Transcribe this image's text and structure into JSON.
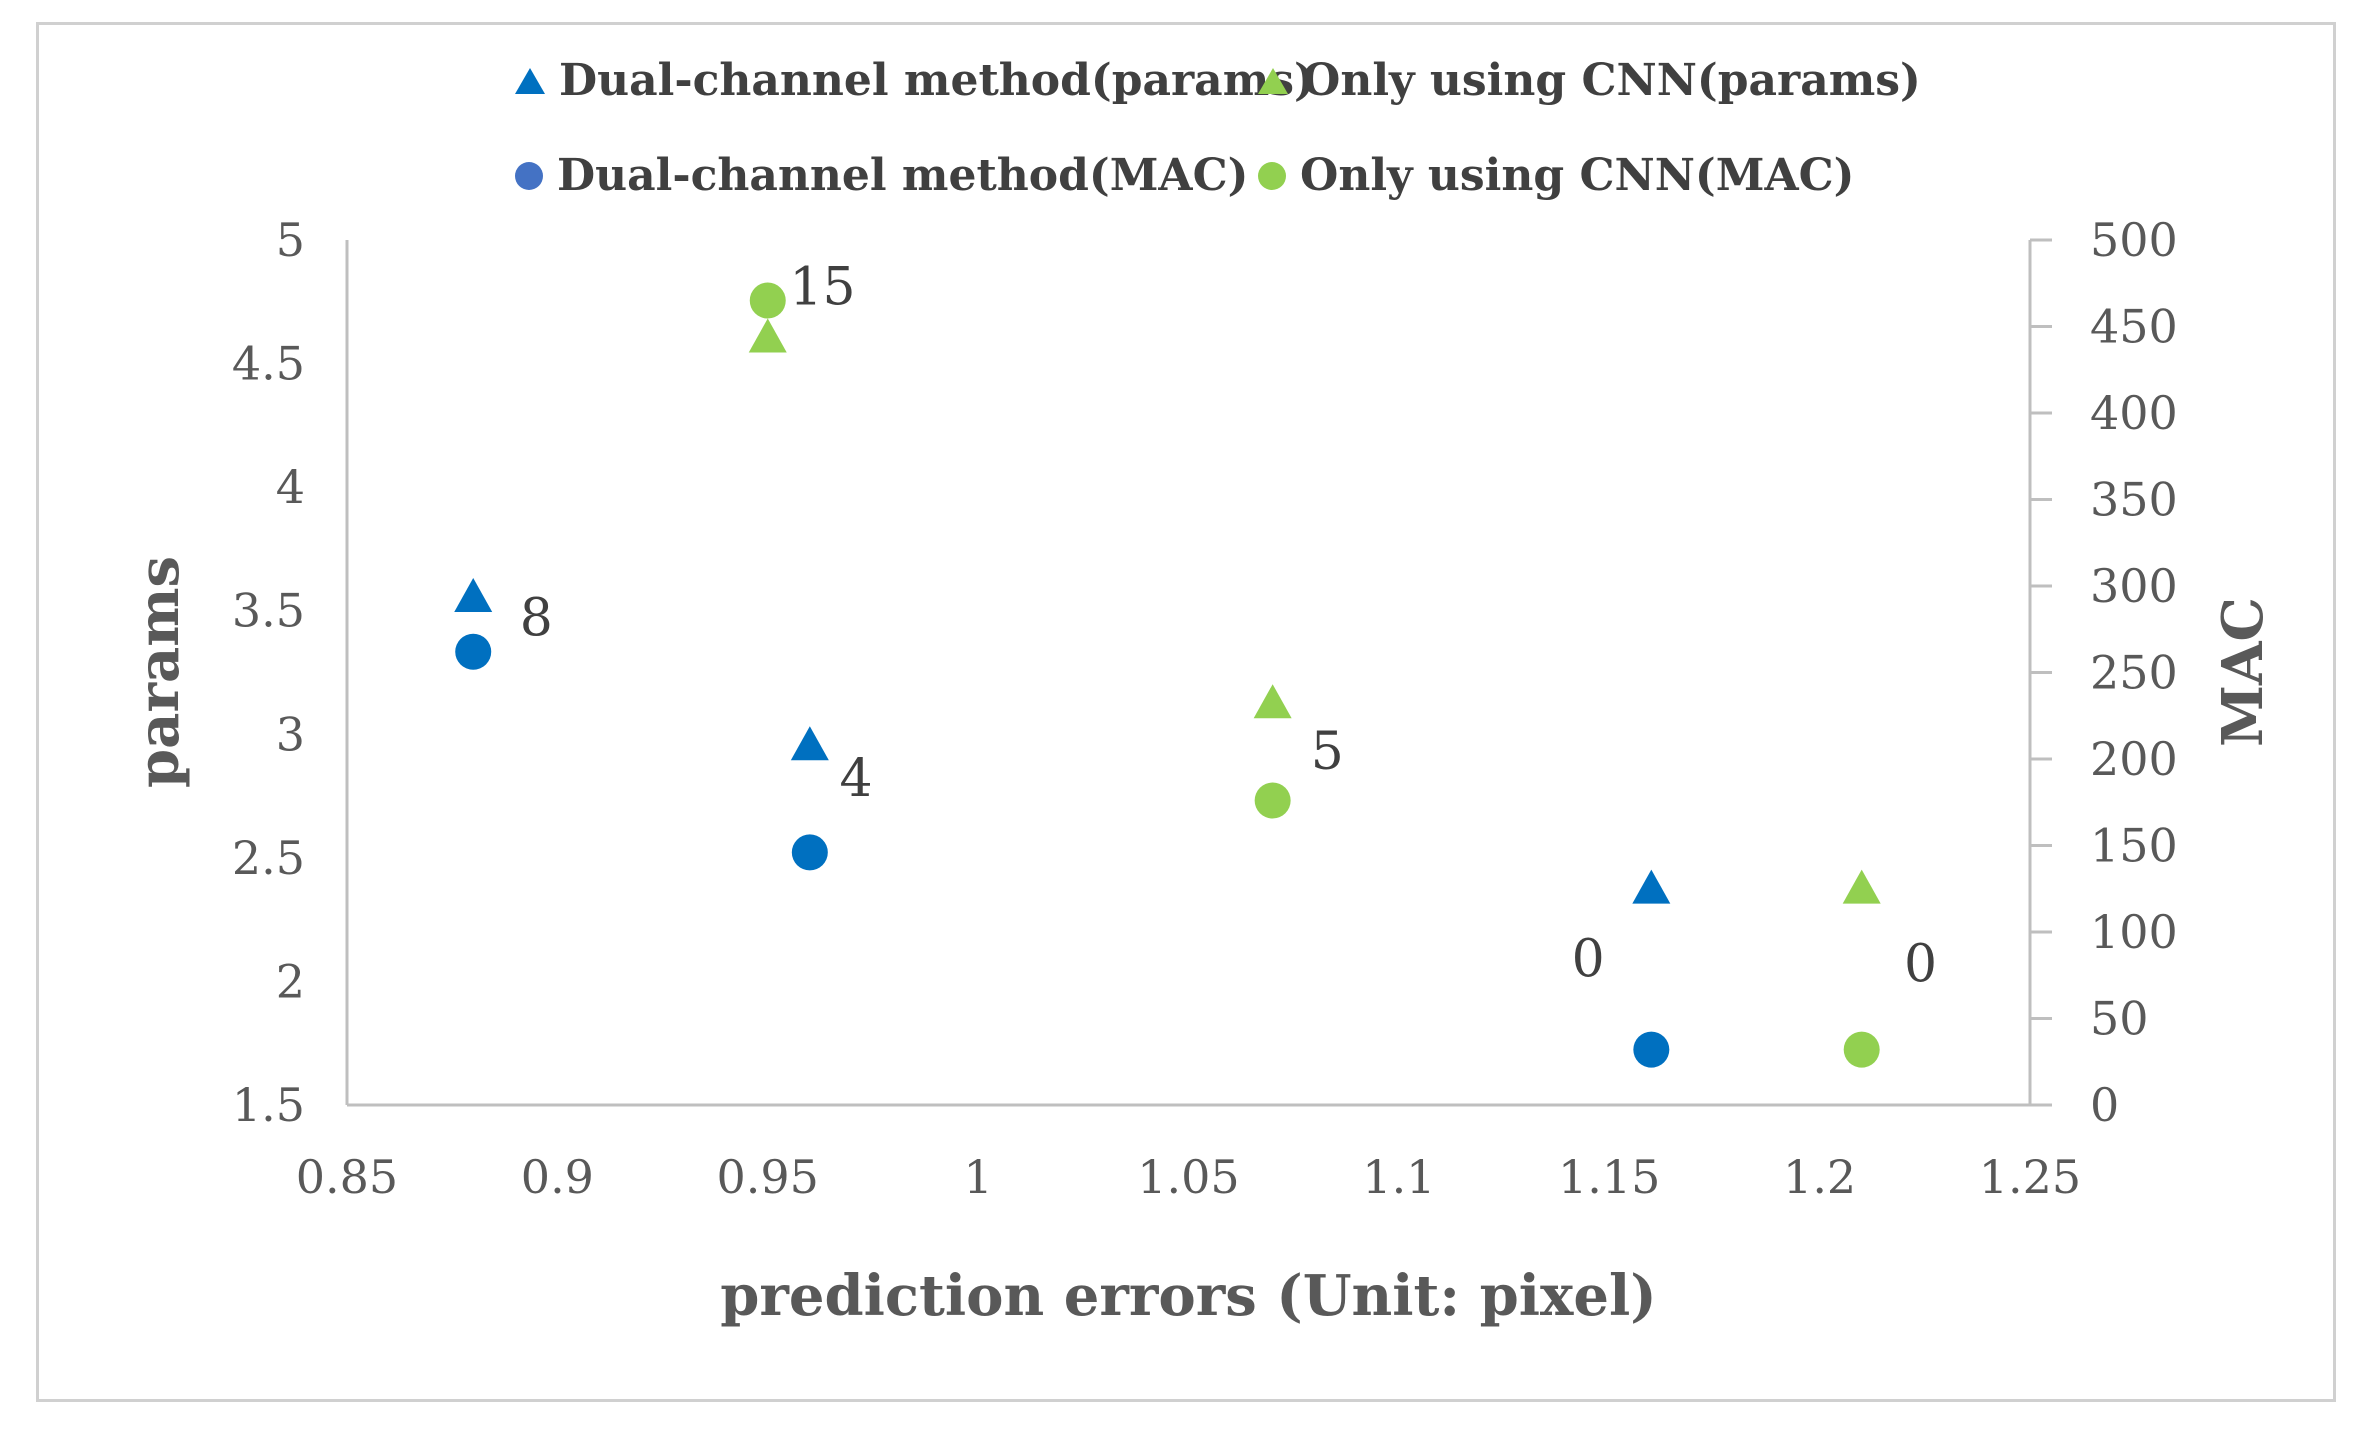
{
  "chart_data": {
    "type": "scatter",
    "xlabel": "prediction errors (Unit: pixel)",
    "ylabel": "params",
    "y2label": "MAC",
    "xlim": [
      0.85,
      1.25
    ],
    "ylim": [
      1.5,
      5
    ],
    "y2lim": [
      0,
      500
    ],
    "x_ticks": [
      "0.85",
      "0.9",
      "0.95",
      "1",
      "1.05",
      "1.1",
      "1.15",
      "1.2",
      "1.25"
    ],
    "y_ticks": [
      "1.5",
      "2",
      "2.5",
      "3",
      "3.5",
      "4",
      "4.5",
      "5"
    ],
    "y2_ticks": [
      "0",
      "50",
      "100",
      "150",
      "200",
      "250",
      "300",
      "350",
      "400",
      "450",
      "500"
    ],
    "grid": false,
    "legend_position": "top",
    "series": [
      {
        "name": "Dual-channel method(params)",
        "marker": "triangle",
        "color": "#0070c0",
        "axis": "left",
        "points": [
          {
            "x": 0.88,
            "y": 3.55
          },
          {
            "x": 0.96,
            "y": 2.95
          },
          {
            "x": 1.16,
            "y": 2.37
          }
        ]
      },
      {
        "name": "Only using CNN(params)",
        "marker": "triangle",
        "color": "#92d050",
        "axis": "left",
        "points": [
          {
            "x": 0.95,
            "y": 4.6
          },
          {
            "x": 1.07,
            "y": 3.12
          },
          {
            "x": 1.21,
            "y": 2.37
          }
        ]
      },
      {
        "name": "Dual-channel method(MAC)",
        "marker": "circle",
        "color": "#0070c0",
        "axis": "right",
        "points": [
          {
            "x": 0.88,
            "y": 262
          },
          {
            "x": 0.96,
            "y": 146
          },
          {
            "x": 1.16,
            "y": 32
          }
        ]
      },
      {
        "name": "Only using CNN(MAC)",
        "marker": "circle",
        "color": "#92d050",
        "axis": "right",
        "points": [
          {
            "x": 0.95,
            "y": 465
          },
          {
            "x": 1.07,
            "y": 176
          },
          {
            "x": 1.21,
            "y": 32
          }
        ]
      }
    ],
    "annotations": [
      {
        "text": "8",
        "x": 0.895,
        "y": 3.4
      },
      {
        "text": "15",
        "x": 0.963,
        "y": 4.74
      },
      {
        "text": "4",
        "x": 0.971,
        "y": 2.75
      },
      {
        "text": "5",
        "x": 1.083,
        "y": 2.86
      },
      {
        "text": "0",
        "x": 1.145,
        "y": 2.02
      },
      {
        "text": "0",
        "x": 1.224,
        "y": 2.0
      }
    ]
  }
}
